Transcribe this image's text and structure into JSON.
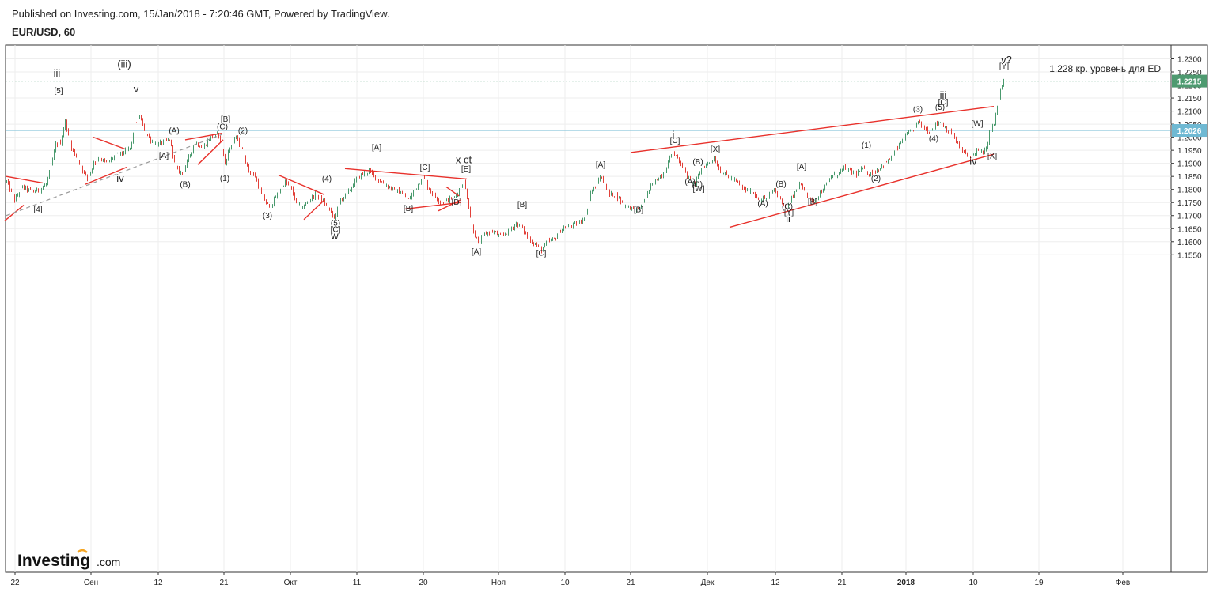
{
  "header": {
    "published": "Published on Investing.com, 15/Jan/2018 - 7:20:46 GMT, Powered by TradingView.",
    "symbol": "EUR/USD, 60"
  },
  "logo": {
    "main": "Investing",
    "suffix": ".com"
  },
  "chart_data": {
    "type": "candlestick",
    "symbol": "EUR/USD",
    "timeframe": "60",
    "y_axis": {
      "range": [
        1.152,
        1.232
      ],
      "ticks": [
        "1.2300",
        "1.2250",
        "1.2200",
        "1.2150",
        "1.2100",
        "1.2050",
        "1.2000",
        "1.1950",
        "1.1900",
        "1.1850",
        "1.1800",
        "1.1750",
        "1.1700",
        "1.1650",
        "1.1600",
        "1.1550"
      ]
    },
    "x_axis": {
      "ticks": [
        {
          "label": "22",
          "bold": false
        },
        {
          "label": "Сен",
          "bold": false
        },
        {
          "label": "12",
          "bold": false
        },
        {
          "label": "21",
          "bold": false
        },
        {
          "label": "Окт",
          "bold": false
        },
        {
          "label": "11",
          "bold": false
        },
        {
          "label": "20",
          "bold": false
        },
        {
          "label": "Ноя",
          "bold": false
        },
        {
          "label": "10",
          "bold": false
        },
        {
          "label": "21",
          "bold": false
        },
        {
          "label": "Дек",
          "bold": false
        },
        {
          "label": "12",
          "bold": false
        },
        {
          "label": "21",
          "bold": false
        },
        {
          "label": "2018",
          "bold": true
        },
        {
          "label": "10",
          "bold": false
        },
        {
          "label": "19",
          "bold": false
        },
        {
          "label": "Фев",
          "bold": false
        }
      ]
    },
    "price_path": [
      [
        0,
        1.175
      ],
      [
        8,
        1.183
      ],
      [
        18,
        1.176
      ],
      [
        28,
        1.181
      ],
      [
        40,
        1.179
      ],
      [
        50,
        1.18
      ],
      [
        58,
        1.182
      ],
      [
        65,
        1.19
      ],
      [
        70,
        1.197
      ],
      [
        76,
        1.198
      ],
      [
        82,
        1.206
      ],
      [
        90,
        1.196
      ],
      [
        100,
        1.19
      ],
      [
        110,
        1.184
      ],
      [
        118,
        1.19
      ],
      [
        125,
        1.192
      ],
      [
        135,
        1.19
      ],
      [
        145,
        1.193
      ],
      [
        155,
        1.194
      ],
      [
        165,
        1.196
      ],
      [
        170,
        1.205
      ],
      [
        176,
        1.208
      ],
      [
        183,
        1.202
      ],
      [
        190,
        1.199
      ],
      [
        198,
        1.197
      ],
      [
        205,
        1.198
      ],
      [
        214,
        1.199
      ],
      [
        222,
        1.188
      ],
      [
        230,
        1.186
      ],
      [
        238,
        1.192
      ],
      [
        246,
        1.198
      ],
      [
        256,
        1.196
      ],
      [
        266,
        1.2
      ],
      [
        276,
        1.201
      ],
      [
        284,
        1.19
      ],
      [
        290,
        1.196
      ],
      [
        298,
        1.2
      ],
      [
        306,
        1.195
      ],
      [
        314,
        1.187
      ],
      [
        322,
        1.185
      ],
      [
        330,
        1.178
      ],
      [
        340,
        1.173
      ],
      [
        350,
        1.178
      ],
      [
        360,
        1.183
      ],
      [
        368,
        1.18
      ],
      [
        375,
        1.174
      ],
      [
        382,
        1.173
      ],
      [
        390,
        1.176
      ],
      [
        398,
        1.178
      ],
      [
        406,
        1.176
      ],
      [
        414,
        1.173
      ],
      [
        422,
        1.169
      ],
      [
        430,
        1.176
      ],
      [
        440,
        1.179
      ],
      [
        450,
        1.184
      ],
      [
        458,
        1.186
      ],
      [
        466,
        1.187
      ],
      [
        476,
        1.184
      ],
      [
        486,
        1.182
      ],
      [
        496,
        1.18
      ],
      [
        506,
        1.179
      ],
      [
        516,
        1.176
      ],
      [
        524,
        1.18
      ],
      [
        534,
        1.185
      ],
      [
        542,
        1.18
      ],
      [
        550,
        1.177
      ],
      [
        558,
        1.175
      ],
      [
        566,
        1.176
      ],
      [
        574,
        1.177
      ],
      [
        580,
        1.18
      ],
      [
        586,
        1.183
      ],
      [
        590,
        1.177
      ],
      [
        596,
        1.166
      ],
      [
        604,
        1.159
      ],
      [
        612,
        1.163
      ],
      [
        622,
        1.164
      ],
      [
        632,
        1.162
      ],
      [
        642,
        1.164
      ],
      [
        652,
        1.167
      ],
      [
        660,
        1.165
      ],
      [
        668,
        1.161
      ],
      [
        676,
        1.159
      ],
      [
        684,
        1.157
      ],
      [
        692,
        1.16
      ],
      [
        700,
        1.161
      ],
      [
        710,
        1.165
      ],
      [
        720,
        1.166
      ],
      [
        730,
        1.167
      ],
      [
        740,
        1.17
      ],
      [
        746,
        1.179
      ],
      [
        752,
        1.181
      ],
      [
        758,
        1.185
      ],
      [
        764,
        1.182
      ],
      [
        770,
        1.178
      ],
      [
        778,
        1.178
      ],
      [
        788,
        1.174
      ],
      [
        798,
        1.173
      ],
      [
        806,
        1.172
      ],
      [
        814,
        1.176
      ],
      [
        822,
        1.181
      ],
      [
        830,
        1.184
      ],
      [
        840,
        1.187
      ],
      [
        848,
        1.194
      ],
      [
        854,
        1.193
      ],
      [
        862,
        1.189
      ],
      [
        870,
        1.184
      ],
      [
        878,
        1.182
      ],
      [
        886,
        1.188
      ],
      [
        894,
        1.19
      ],
      [
        902,
        1.192
      ],
      [
        910,
        1.187
      ],
      [
        920,
        1.185
      ],
      [
        930,
        1.183
      ],
      [
        940,
        1.18
      ],
      [
        950,
        1.179
      ],
      [
        960,
        1.176
      ],
      [
        970,
        1.177
      ],
      [
        978,
        1.18
      ],
      [
        986,
        1.176
      ],
      [
        994,
        1.173
      ],
      [
        1002,
        1.178
      ],
      [
        1010,
        1.182
      ],
      [
        1018,
        1.179
      ],
      [
        1026,
        1.175
      ],
      [
        1034,
        1.178
      ],
      [
        1042,
        1.181
      ],
      [
        1050,
        1.185
      ],
      [
        1058,
        1.186
      ],
      [
        1066,
        1.188
      ],
      [
        1074,
        1.187
      ],
      [
        1082,
        1.186
      ],
      [
        1090,
        1.188
      ],
      [
        1098,
        1.186
      ],
      [
        1106,
        1.187
      ],
      [
        1114,
        1.189
      ],
      [
        1122,
        1.191
      ],
      [
        1130,
        1.194
      ],
      [
        1138,
        1.198
      ],
      [
        1146,
        1.201
      ],
      [
        1154,
        1.203
      ],
      [
        1160,
        1.206
      ],
      [
        1166,
        1.204
      ],
      [
        1174,
        1.202
      ],
      [
        1182,
        1.205
      ],
      [
        1188,
        1.206
      ],
      [
        1196,
        1.203
      ],
      [
        1204,
        1.201
      ],
      [
        1210,
        1.197
      ],
      [
        1218,
        1.194
      ],
      [
        1226,
        1.192
      ],
      [
        1234,
        1.195
      ],
      [
        1240,
        1.194
      ],
      [
        1246,
        1.195
      ],
      [
        1250,
        1.202
      ],
      [
        1256,
        1.205
      ],
      [
        1260,
        1.212
      ],
      [
        1264,
        1.218
      ],
      [
        1268,
        1.2215
      ]
    ],
    "horizontal_lines": [
      {
        "price": 1.2215,
        "style": "dotted",
        "color": "#2e8b57",
        "label": "1.2215"
      },
      {
        "price": 1.2026,
        "style": "solid",
        "color": "#6fb9d3",
        "label": "1.2026"
      }
    ],
    "trendlines": [
      [
        8,
        1.185,
        54,
        1.1825
      ],
      [
        118,
        1.2,
        158,
        1.1955
      ],
      [
        108,
        1.182,
        160,
        1.1885
      ],
      [
        234,
        1.199,
        280,
        1.2015
      ],
      [
        250,
        1.1895,
        282,
        1.199
      ],
      [
        352,
        1.1855,
        410,
        1.178
      ],
      [
        384,
        1.1685,
        410,
        1.176
      ],
      [
        436,
        1.188,
        590,
        1.184
      ],
      [
        512,
        1.1725,
        582,
        1.175
      ],
      [
        554,
        1.1718,
        582,
        1.176
      ],
      [
        564,
        1.181,
        580,
        1.1775
      ],
      [
        798,
        1.1942,
        1256,
        1.2118
      ],
      [
        922,
        1.1655,
        1256,
        1.1935
      ],
      [
        6,
        1.168,
        30,
        1.174
      ]
    ],
    "dashed_line": [
      8,
      1.17,
      280,
      1.201
    ],
    "annotations": [
      {
        "t": "(iii)",
        "x": 157,
        "p": 1.2266
      },
      {
        "t": "iii",
        "x": 72,
        "p": 1.2232
      },
      {
        "t": "[5]",
        "x": 74,
        "p": 1.2168
      },
      {
        "t": "v",
        "x": 172,
        "p": 1.2172
      },
      {
        "t": "[B]",
        "x": 285,
        "p": 1.206
      },
      {
        "t": "(C)",
        "x": 281,
        "p": 1.203
      },
      {
        "t": "(A)",
        "x": 220,
        "p": 1.2015
      },
      {
        "t": "(2)",
        "x": 307,
        "p": 1.2015
      },
      {
        "t": "[A]",
        "x": 207,
        "p": 1.192
      },
      {
        "t": "iv",
        "x": 152,
        "p": 1.183
      },
      {
        "t": "(B)",
        "x": 234,
        "p": 1.181
      },
      {
        "t": "(1)",
        "x": 284,
        "p": 1.1833
      },
      {
        "t": "[4]",
        "x": 48,
        "p": 1.1715
      },
      {
        "t": "(3)",
        "x": 338,
        "p": 1.169
      },
      {
        "t": "(4)",
        "x": 413,
        "p": 1.1831
      },
      {
        "t": "(5)",
        "x": 424,
        "p": 1.1662
      },
      {
        "t": "[C]",
        "x": 424,
        "p": 1.1637
      },
      {
        "t": "w",
        "x": 423,
        "p": 1.161
      },
      {
        "t": "[A]",
        "x": 476,
        "p": 1.1952
      },
      {
        "t": "x ct",
        "x": 586,
        "p": 1.19
      },
      {
        "t": "[E]",
        "x": 589,
        "p": 1.1868
      },
      {
        "t": "[C]",
        "x": 537,
        "p": 1.1875
      },
      {
        "t": "[B]",
        "x": 516,
        "p": 1.1718
      },
      {
        "t": "[D]",
        "x": 577,
        "p": 1.1742
      },
      {
        "t": "[A]",
        "x": 602,
        "p": 1.1553
      },
      {
        "t": "[B]",
        "x": 660,
        "p": 1.1733
      },
      {
        "t": "[C]",
        "x": 684,
        "p": 1.1547
      },
      {
        "t": "[A]",
        "x": 759,
        "p": 1.1885
      },
      {
        "t": "[B]",
        "x": 807,
        "p": 1.1713
      },
      {
        "t": "i",
        "x": 851,
        "p": 1.1996
      },
      {
        "t": "[C]",
        "x": 853,
        "p": 1.1977
      },
      {
        "t": "[X]",
        "x": 904,
        "p": 1.1945
      },
      {
        "t": "(B)",
        "x": 882,
        "p": 1.1896
      },
      {
        "t": "(A)",
        "x": 872,
        "p": 1.182
      },
      {
        "t": "(C)",
        "x": 881,
        "p": 1.181
      },
      {
        "t": "[W]",
        "x": 883,
        "p": 1.1793
      },
      {
        "t": "[A]",
        "x": 1013,
        "p": 1.1878
      },
      {
        "t": "(B)",
        "x": 987,
        "p": 1.1811
      },
      {
        "t": "(A)",
        "x": 964,
        "p": 1.1737
      },
      {
        "t": "(C)",
        "x": 995,
        "p": 1.1725
      },
      {
        "t": "[B]",
        "x": 1027,
        "p": 1.1743
      },
      {
        "t": "[Y]",
        "x": 997,
        "p": 1.1703
      },
      {
        "t": "ii",
        "x": 996,
        "p": 1.1675
      },
      {
        "t": "(1)",
        "x": 1095,
        "p": 1.196
      },
      {
        "t": "(2)",
        "x": 1107,
        "p": 1.1833
      },
      {
        "t": "(3)",
        "x": 1160,
        "p": 1.2097
      },
      {
        "t": "iii",
        "x": 1192,
        "p": 1.2147
      },
      {
        "t": "[C]",
        "x": 1192,
        "p": 1.2125
      },
      {
        "t": "(5)",
        "x": 1188,
        "p": 1.2105
      },
      {
        "t": "(4)",
        "x": 1180,
        "p": 1.1985
      },
      {
        "t": "[W]",
        "x": 1235,
        "p": 1.2043
      },
      {
        "t": "iv",
        "x": 1230,
        "p": 1.1895
      },
      {
        "t": "[X]",
        "x": 1254,
        "p": 1.1918
      },
      {
        "t": "v?",
        "x": 1272,
        "p": 1.2284
      },
      {
        "t": "[Y]",
        "x": 1269,
        "p": 1.2262
      }
    ],
    "note": "1.228 кр. уровень для ED"
  }
}
